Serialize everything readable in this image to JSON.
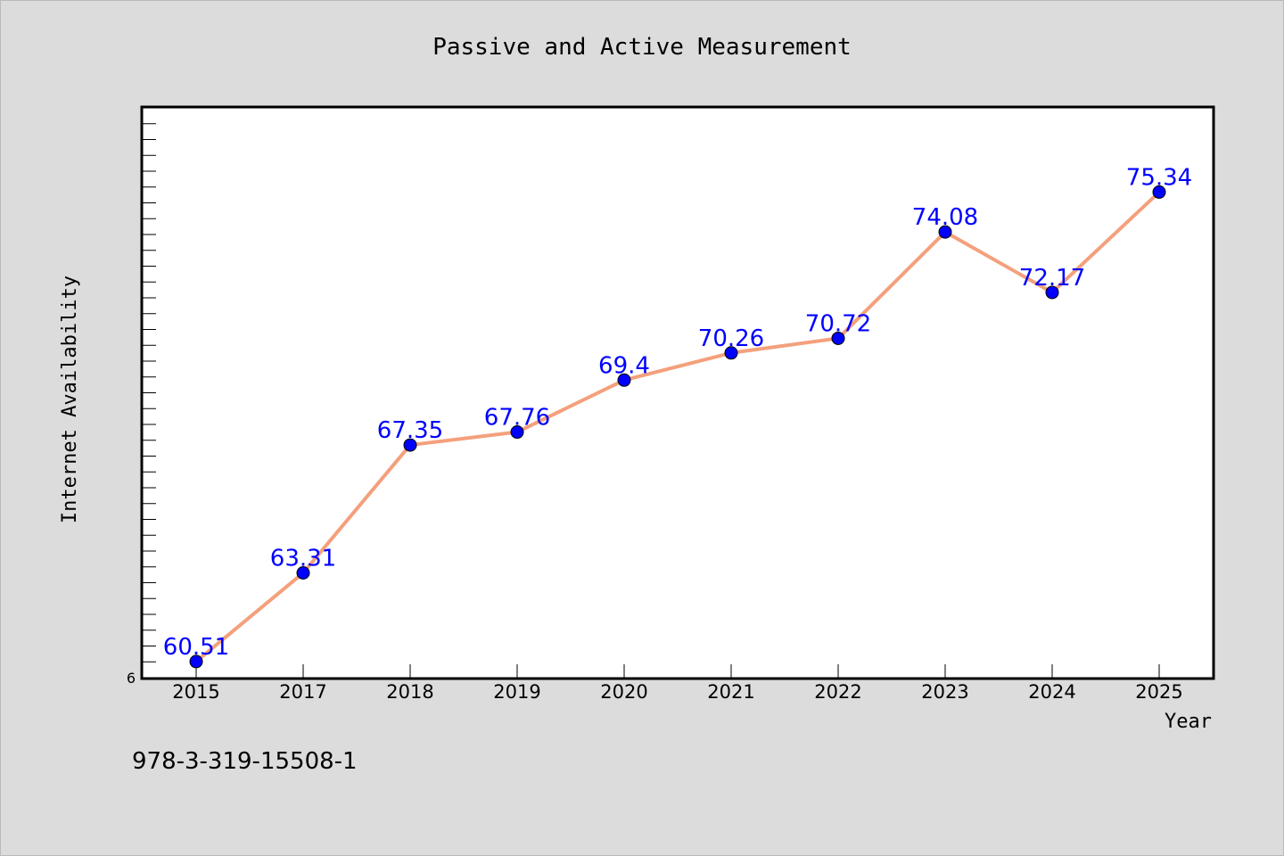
{
  "chart_data": {
    "type": "line",
    "title": "Passive and Active Measurement",
    "xlabel": "Year",
    "ylabel": "Internet Availability",
    "categories": [
      "2015",
      "2017",
      "2018",
      "2019",
      "2020",
      "2021",
      "2022",
      "2023",
      "2024",
      "2025"
    ],
    "series": [
      {
        "values": [
          60.51,
          63.31,
          67.35,
          67.76,
          69.4,
          70.26,
          70.72,
          74.08,
          72.17,
          75.34
        ],
        "labels": [
          "60.51",
          "63.31",
          "67.35",
          "67.76",
          "69.4",
          "70.26",
          "70.72",
          "74.08",
          "72.17",
          "75.34"
        ],
        "line_color": "#f4a07c",
        "marker_color": "#0000ff",
        "label_color": "#0000ff"
      }
    ],
    "y_tick_label": "6",
    "ylim": [
      60,
      78
    ],
    "grid": false,
    "legend": "none"
  },
  "footer_text": "978-3-319-15508-1"
}
